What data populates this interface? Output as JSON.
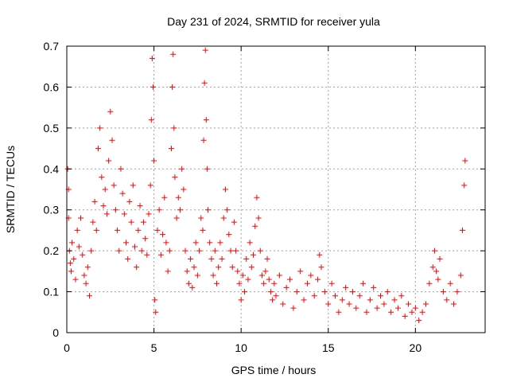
{
  "chart_data": {
    "type": "scatter",
    "title": "Day 231 of 2024, SRMTID for receiver yula",
    "xlabel": "GPS time / hours",
    "ylabel": "SRMTID / TECUs",
    "xlim": [
      0,
      24
    ],
    "ylim": [
      0,
      0.7
    ],
    "xticks": [
      0,
      5,
      10,
      15,
      20
    ],
    "yticks": [
      0,
      0.1,
      0.2,
      0.3,
      0.4,
      0.5,
      0.6,
      0.7
    ],
    "grid": true,
    "marker": "+",
    "color": "#ff0000",
    "series": [
      {
        "name": "SRMTID",
        "points": [
          [
            0.05,
            0.4
          ],
          [
            0.1,
            0.35
          ],
          [
            0.1,
            0.28
          ],
          [
            0.15,
            0.2
          ],
          [
            0.2,
            0.17
          ],
          [
            0.25,
            0.15
          ],
          [
            0.3,
            0.22
          ],
          [
            0.4,
            0.18
          ],
          [
            0.5,
            0.13
          ],
          [
            0.6,
            0.25
          ],
          [
            0.7,
            0.21
          ],
          [
            0.8,
            0.28
          ],
          [
            0.9,
            0.19
          ],
          [
            1.0,
            0.14
          ],
          [
            1.1,
            0.12
          ],
          [
            1.2,
            0.16
          ],
          [
            1.3,
            0.09
          ],
          [
            1.4,
            0.2
          ],
          [
            1.5,
            0.27
          ],
          [
            1.6,
            0.32
          ],
          [
            1.7,
            0.25
          ],
          [
            1.8,
            0.45
          ],
          [
            1.9,
            0.5
          ],
          [
            2.0,
            0.38
          ],
          [
            2.1,
            0.31
          ],
          [
            2.2,
            0.35
          ],
          [
            2.3,
            0.29
          ],
          [
            2.4,
            0.42
          ],
          [
            2.5,
            0.54
          ],
          [
            2.6,
            0.47
          ],
          [
            2.7,
            0.36
          ],
          [
            2.8,
            0.3
          ],
          [
            2.9,
            0.25
          ],
          [
            3.0,
            0.2
          ],
          [
            3.1,
            0.4
          ],
          [
            3.2,
            0.34
          ],
          [
            3.3,
            0.29
          ],
          [
            3.4,
            0.22
          ],
          [
            3.5,
            0.18
          ],
          [
            3.6,
            0.32
          ],
          [
            3.7,
            0.27
          ],
          [
            3.8,
            0.36
          ],
          [
            3.9,
            0.21
          ],
          [
            4.0,
            0.16
          ],
          [
            4.1,
            0.25
          ],
          [
            4.2,
            0.31
          ],
          [
            4.3,
            0.2
          ],
          [
            4.4,
            0.27
          ],
          [
            4.5,
            0.23
          ],
          [
            4.6,
            0.19
          ],
          [
            4.7,
            0.29
          ],
          [
            4.8,
            0.36
          ],
          [
            4.85,
            0.52
          ],
          [
            4.9,
            0.67
          ],
          [
            4.95,
            0.6
          ],
          [
            5.0,
            0.42
          ],
          [
            5.05,
            0.08
          ],
          [
            5.1,
            0.05
          ],
          [
            5.2,
            0.25
          ],
          [
            5.3,
            0.3
          ],
          [
            5.4,
            0.19
          ],
          [
            5.5,
            0.24
          ],
          [
            5.6,
            0.33
          ],
          [
            5.7,
            0.22
          ],
          [
            5.8,
            0.15
          ],
          [
            5.9,
            0.2
          ],
          [
            6.0,
            0.45
          ],
          [
            6.05,
            0.6
          ],
          [
            6.1,
            0.68
          ],
          [
            6.15,
            0.5
          ],
          [
            6.2,
            0.38
          ],
          [
            6.3,
            0.28
          ],
          [
            6.4,
            0.33
          ],
          [
            6.5,
            0.3
          ],
          [
            6.6,
            0.4
          ],
          [
            6.7,
            0.35
          ],
          [
            6.8,
            0.2
          ],
          [
            6.9,
            0.15
          ],
          [
            7.0,
            0.12
          ],
          [
            7.1,
            0.18
          ],
          [
            7.2,
            0.11
          ],
          [
            7.3,
            0.16
          ],
          [
            7.4,
            0.22
          ],
          [
            7.5,
            0.14
          ],
          [
            7.6,
            0.2
          ],
          [
            7.7,
            0.28
          ],
          [
            7.8,
            0.25
          ],
          [
            7.85,
            0.47
          ],
          [
            7.9,
            0.61
          ],
          [
            7.95,
            0.69
          ],
          [
            8.0,
            0.52
          ],
          [
            8.05,
            0.4
          ],
          [
            8.1,
            0.3
          ],
          [
            8.2,
            0.22
          ],
          [
            8.3,
            0.18
          ],
          [
            8.4,
            0.14
          ],
          [
            8.5,
            0.2
          ],
          [
            8.6,
            0.12
          ],
          [
            8.7,
            0.16
          ],
          [
            8.8,
            0.22
          ],
          [
            8.9,
            0.18
          ],
          [
            9.0,
            0.28
          ],
          [
            9.1,
            0.35
          ],
          [
            9.2,
            0.3
          ],
          [
            9.3,
            0.24
          ],
          [
            9.4,
            0.2
          ],
          [
            9.5,
            0.16
          ],
          [
            9.6,
            0.27
          ],
          [
            9.7,
            0.2
          ],
          [
            9.8,
            0.15
          ],
          [
            9.9,
            0.12
          ],
          [
            10.0,
            0.08
          ],
          [
            10.1,
            0.14
          ],
          [
            10.2,
            0.1
          ],
          [
            10.3,
            0.18
          ],
          [
            10.4,
            0.13
          ],
          [
            10.5,
            0.22
          ],
          [
            10.6,
            0.16
          ],
          [
            10.7,
            0.19
          ],
          [
            10.8,
            0.26
          ],
          [
            10.9,
            0.33
          ],
          [
            11.0,
            0.28
          ],
          [
            11.1,
            0.2
          ],
          [
            11.2,
            0.14
          ],
          [
            11.3,
            0.12
          ],
          [
            11.4,
            0.15
          ],
          [
            11.5,
            0.18
          ],
          [
            11.6,
            0.13
          ],
          [
            11.7,
            0.1
          ],
          [
            11.8,
            0.08
          ],
          [
            11.9,
            0.12
          ],
          [
            12.0,
            0.09
          ],
          [
            12.2,
            0.14
          ],
          [
            12.4,
            0.07
          ],
          [
            12.6,
            0.11
          ],
          [
            12.8,
            0.13
          ],
          [
            13.0,
            0.06
          ],
          [
            13.2,
            0.1
          ],
          [
            13.4,
            0.15
          ],
          [
            13.6,
            0.08
          ],
          [
            13.8,
            0.12
          ],
          [
            14.0,
            0.14
          ],
          [
            14.2,
            0.09
          ],
          [
            14.4,
            0.13
          ],
          [
            14.5,
            0.19
          ],
          [
            14.6,
            0.16
          ],
          [
            14.8,
            0.1
          ],
          [
            15.0,
            0.07
          ],
          [
            15.2,
            0.12
          ],
          [
            15.4,
            0.09
          ],
          [
            15.6,
            0.05
          ],
          [
            15.8,
            0.08
          ],
          [
            16.0,
            0.11
          ],
          [
            16.2,
            0.07
          ],
          [
            16.4,
            0.1
          ],
          [
            16.6,
            0.06
          ],
          [
            16.8,
            0.09
          ],
          [
            17.0,
            0.12
          ],
          [
            17.2,
            0.05
          ],
          [
            17.4,
            0.08
          ],
          [
            17.6,
            0.11
          ],
          [
            17.8,
            0.06
          ],
          [
            18.0,
            0.09
          ],
          [
            18.2,
            0.07
          ],
          [
            18.4,
            0.1
          ],
          [
            18.6,
            0.05
          ],
          [
            18.8,
            0.08
          ],
          [
            19.0,
            0.06
          ],
          [
            19.2,
            0.09
          ],
          [
            19.4,
            0.04
          ],
          [
            19.6,
            0.07
          ],
          [
            19.8,
            0.05
          ],
          [
            20.0,
            0.06
          ],
          [
            20.2,
            0.03
          ],
          [
            20.4,
            0.05
          ],
          [
            20.6,
            0.07
          ],
          [
            20.8,
            0.12
          ],
          [
            21.0,
            0.16
          ],
          [
            21.1,
            0.2
          ],
          [
            21.2,
            0.15
          ],
          [
            21.3,
            0.13
          ],
          [
            21.4,
            0.18
          ],
          [
            21.6,
            0.1
          ],
          [
            21.8,
            0.08
          ],
          [
            22.0,
            0.12
          ],
          [
            22.2,
            0.07
          ],
          [
            22.4,
            0.1
          ],
          [
            22.6,
            0.14
          ],
          [
            22.7,
            0.25
          ],
          [
            22.8,
            0.36
          ],
          [
            22.85,
            0.42
          ]
        ]
      }
    ]
  }
}
